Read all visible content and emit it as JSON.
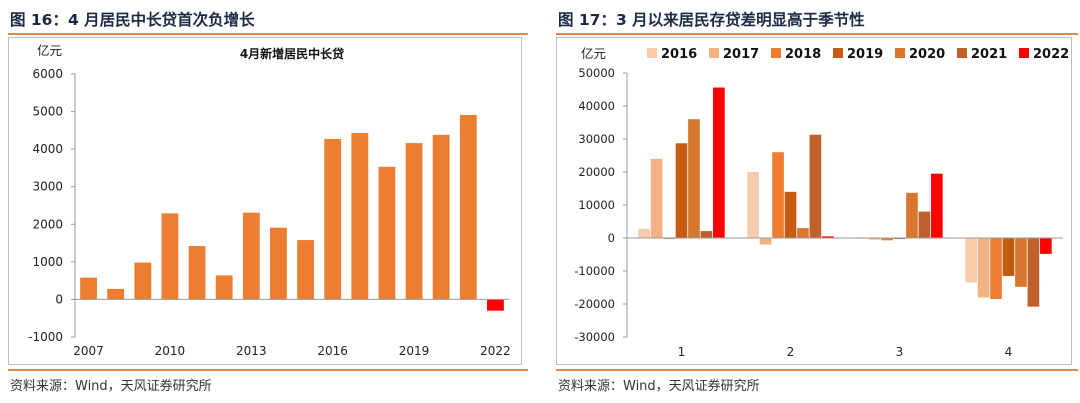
{
  "left_panel": {
    "figure_title": "图 16：4 月居民中长贷首次负增长",
    "source": "资料来源：Wind，天风证券研究所"
  },
  "right_panel": {
    "figure_title": "图 17：3 月以来居民存贷差明显高于季节性",
    "source": "资料来源：Wind，天风证券研究所"
  },
  "chart_data": [
    {
      "type": "bar",
      "title": "4月新增居民中长贷",
      "ylabel": "亿元",
      "xlabel": "",
      "categories": [
        "2007",
        "2008",
        "2009",
        "2010",
        "2011",
        "2012",
        "2013",
        "2014",
        "2015",
        "2016",
        "2017",
        "2018",
        "2019",
        "2020",
        "2021",
        "2022"
      ],
      "x_tick_labels": [
        "2007",
        "2010",
        "2013",
        "2016",
        "2019",
        "2022"
      ],
      "values": [
        580,
        280,
        980,
        2290,
        1420,
        640,
        2310,
        1910,
        1580,
        4270,
        4430,
        3530,
        4160,
        4380,
        4910,
        -300
      ],
      "ylim": [
        -1000,
        6000
      ],
      "y_ticks": [
        -1000,
        0,
        1000,
        2000,
        3000,
        4000,
        5000,
        6000
      ],
      "colors": {
        "positive": "#ed7d31",
        "negative": "#ff0000"
      },
      "grid": false,
      "legend": "none"
    },
    {
      "type": "bar",
      "ylabel": "亿元",
      "xlabel": "",
      "categories": [
        "1",
        "2",
        "3",
        "4"
      ],
      "series": [
        {
          "name": "2016",
          "color": "#f8cbad",
          "values": [
            2800,
            20000,
            -200,
            -13500
          ]
        },
        {
          "name": "2017",
          "color": "#f4b183",
          "values": [
            24000,
            -2000,
            -500,
            -18000
          ]
        },
        {
          "name": "2018",
          "color": "#ed7d31",
          "values": [
            -300,
            26000,
            -700,
            -18500
          ]
        },
        {
          "name": "2019",
          "color": "#c55a11",
          "values": [
            28700,
            14000,
            -300,
            -11500
          ]
        },
        {
          "name": "2020",
          "color": "#d8782e",
          "values": [
            36000,
            3000,
            13700,
            -14800
          ]
        },
        {
          "name": "2021",
          "color": "#c0602a",
          "values": [
            2100,
            31300,
            8000,
            -20800
          ]
        },
        {
          "name": "2022",
          "color": "#ff0000",
          "values": [
            45600,
            500,
            19500,
            -4800
          ]
        }
      ],
      "ylim": [
        -30000,
        50000
      ],
      "y_ticks": [
        -30000,
        -20000,
        -10000,
        0,
        10000,
        20000,
        30000,
        40000,
        50000
      ],
      "grid": false,
      "legend": "top"
    }
  ]
}
